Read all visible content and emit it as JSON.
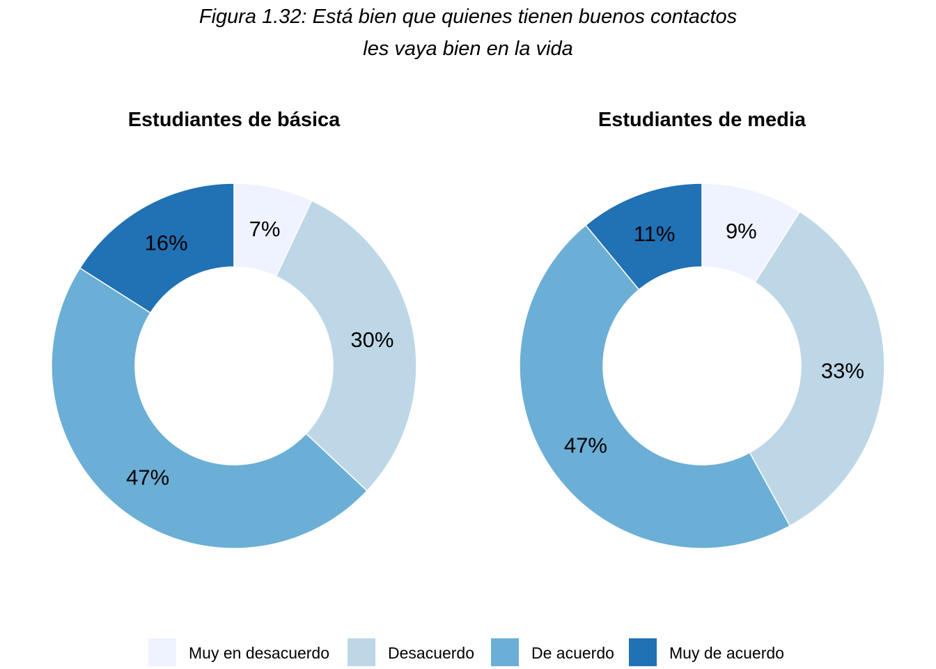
{
  "figure": {
    "title_line1": "Figura 1.32: Está bien que quienes tienen buenos contactos",
    "title_line2": "les vaya bien en la vida"
  },
  "legend": {
    "items": [
      {
        "label": "Muy en desacuerdo",
        "color": "#EFF3FF"
      },
      {
        "label": "Desacuerdo",
        "color": "#BDD7E7"
      },
      {
        "label": "De acuerdo",
        "color": "#6BAED6"
      },
      {
        "label": "Muy de acuerdo",
        "color": "#2171B5"
      }
    ]
  },
  "chart_data": [
    {
      "type": "pie",
      "title": "Estudiantes de básica",
      "categories": [
        "Muy en desacuerdo",
        "Desacuerdo",
        "De acuerdo",
        "Muy de acuerdo"
      ],
      "values": [
        7,
        30,
        47,
        16
      ],
      "labels": [
        "7%",
        "30%",
        "47%",
        "16%"
      ]
    },
    {
      "type": "pie",
      "title": "Estudiantes de media",
      "categories": [
        "Muy en desacuerdo",
        "Desacuerdo",
        "De acuerdo",
        "Muy de acuerdo"
      ],
      "values": [
        9,
        33,
        47,
        11
      ],
      "labels": [
        "9%",
        "33%",
        "47%",
        "11%"
      ]
    }
  ]
}
